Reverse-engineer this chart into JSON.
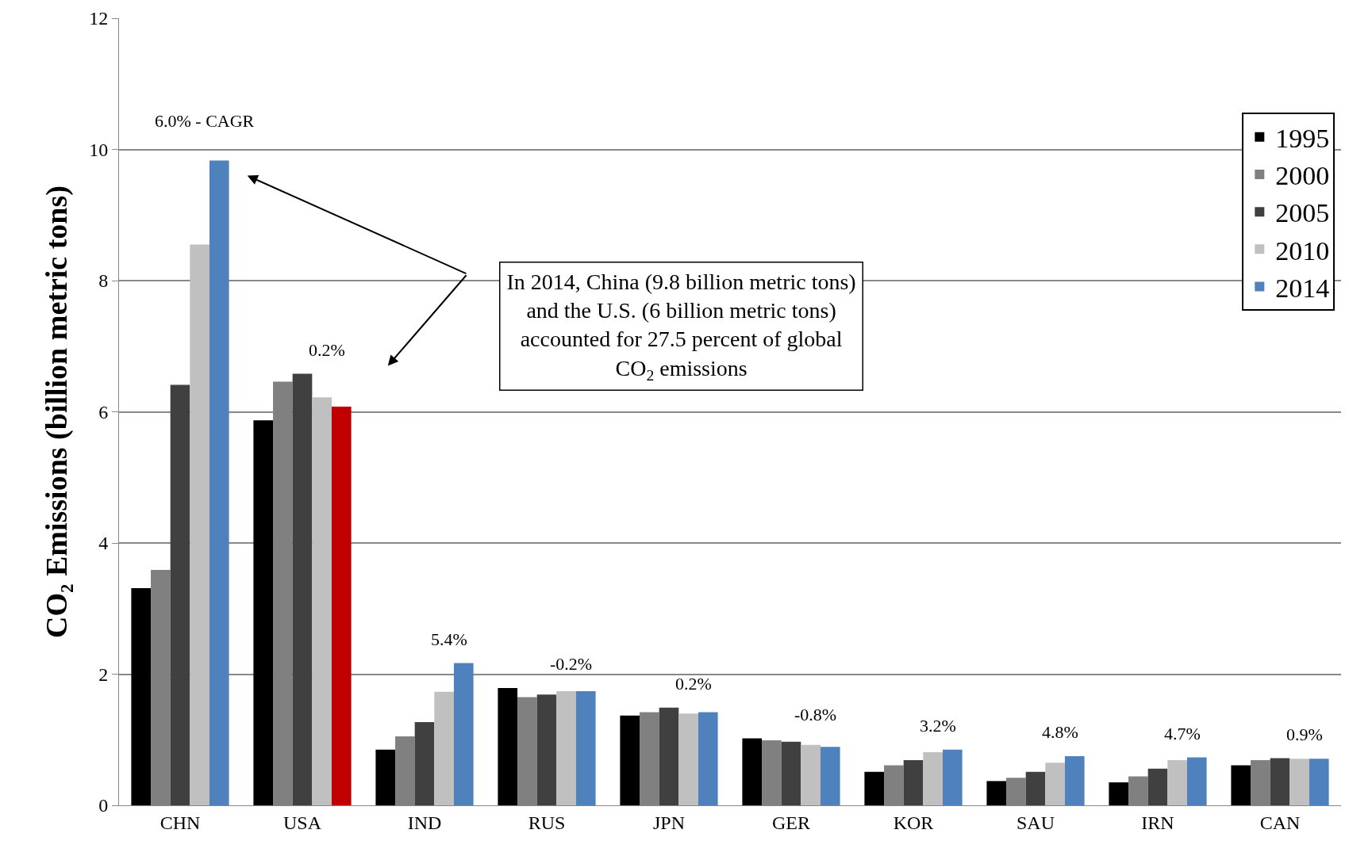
{
  "chart_data": {
    "type": "bar",
    "ylabel": "CO₂ Emissions (billion metric tons)",
    "categories": [
      "CHN",
      "USA",
      "IND",
      "RUS",
      "JPN",
      "GER",
      "KOR",
      "SAU",
      "IRN",
      "CAN"
    ],
    "series": [
      {
        "name": "1995",
        "color": "#000000",
        "values": [
          3.31,
          5.87,
          0.85,
          1.79,
          1.37,
          1.02,
          0.51,
          0.37,
          0.35,
          0.61
        ]
      },
      {
        "name": "2000",
        "color": "#808080",
        "values": [
          3.59,
          6.46,
          1.05,
          1.65,
          1.42,
          0.99,
          0.61,
          0.42,
          0.44,
          0.69
        ]
      },
      {
        "name": "2005",
        "color": "#404040",
        "values": [
          6.41,
          6.58,
          1.27,
          1.69,
          1.49,
          0.97,
          0.69,
          0.51,
          0.56,
          0.72
        ]
      },
      {
        "name": "2010",
        "color": "#c0c0c0",
        "values": [
          8.55,
          6.22,
          1.73,
          1.74,
          1.4,
          0.92,
          0.81,
          0.65,
          0.69,
          0.71
        ]
      },
      {
        "name": "2014",
        "color": "#4f81bd",
        "colors": [
          "#4f81bd",
          "#c00000",
          "#4f81bd",
          "#4f81bd",
          "#4f81bd",
          "#4f81bd",
          "#4f81bd",
          "#4f81bd",
          "#4f81bd",
          "#4f81bd"
        ],
        "values": [
          9.83,
          6.08,
          2.17,
          1.74,
          1.42,
          0.89,
          0.85,
          0.75,
          0.73,
          0.71
        ]
      }
    ],
    "ylim": [
      0,
      12
    ],
    "yticks": [
      0,
      2,
      4,
      6,
      8,
      10,
      12
    ],
    "grid": "y",
    "legend": "top right",
    "annotations": [
      "6.0% - CAGR",
      "0.2%",
      "5.4%",
      "-0.2%",
      "0.2%",
      "-0.8%",
      "3.2%",
      "4.8%",
      "4.7%",
      "0.9%",
      "In 2014, China (9.8 billion metric tons) and the U.S. (6 billion metric tons) accounted for 27.5 percent of global CO$_{2}$ emissions"
    ]
  }
}
